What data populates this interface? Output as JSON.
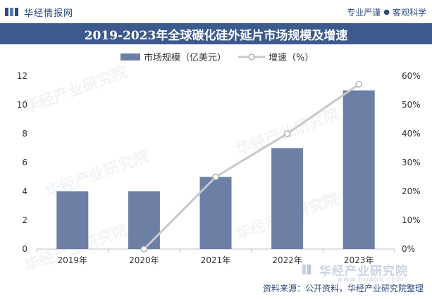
{
  "header": {
    "brand_name": "华经情报网",
    "slogan_left": "专业严谨",
    "slogan_sep": "●",
    "slogan_right": "客观科学"
  },
  "footer": {
    "brand_name": "华经产业研究院",
    "url": "www.huaon.com",
    "source": "资料来源：公开资料，华经产业研究院整理"
  },
  "colors": {
    "bar": "#6c7fa5",
    "line": "#c6c8cc",
    "title_bg": "#3d5a8e",
    "brand": "#2d4a7c"
  },
  "chart_data": {
    "type": "bar",
    "title": "2019-2023年全球碳化硅外延片市场规模及增速",
    "categories": [
      "2019年",
      "2020年",
      "2021年",
      "2022年",
      "2023年"
    ],
    "series": [
      {
        "name": "市场规模（亿美元）",
        "type": "bar",
        "axis": "left",
        "values": [
          4.0,
          4.0,
          5.0,
          7.0,
          11.0
        ]
      },
      {
        "name": "增速（%）",
        "type": "line",
        "axis": "right",
        "values": [
          null,
          0.0,
          25.0,
          40.0,
          57.1
        ]
      }
    ],
    "y_left": {
      "min": 0,
      "max": 12,
      "ticks": [
        0,
        2,
        4,
        6,
        8,
        10,
        12
      ]
    },
    "y_right": {
      "min": 0,
      "max": 60,
      "ticks": [
        "0%",
        "10%",
        "20%",
        "30%",
        "40%",
        "50%",
        "60%"
      ]
    },
    "legend_position": "top-center",
    "grid": false
  }
}
